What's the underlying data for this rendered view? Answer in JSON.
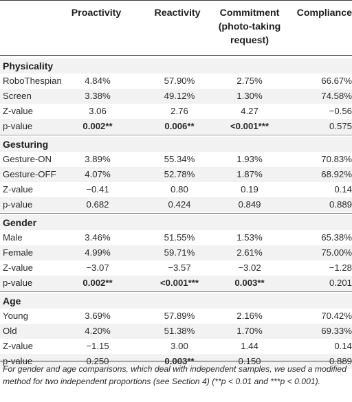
{
  "headers": [
    "",
    "Proactivity",
    "Reactivity",
    "Commitment (photo-taking request)",
    "Compliance"
  ],
  "header_lines": {
    "col1": [
      "Proactivity"
    ],
    "col2": [
      "Reactivity"
    ],
    "col3": [
      "Commitment",
      "(photo-taking",
      "request)"
    ],
    "col4": [
      "Compliance"
    ]
  },
  "sections": [
    {
      "title": "Physicality",
      "rows": [
        {
          "label": "RoboThespian",
          "v": [
            "4.84%",
            "57.90%",
            "2.75%",
            "66.67%"
          ],
          "bold": [
            false,
            false,
            false,
            false
          ]
        },
        {
          "label": "Screen",
          "v": [
            "3.38%",
            "49.12%",
            "1.30%",
            "74.58%"
          ],
          "bold": [
            false,
            false,
            false,
            false
          ]
        },
        {
          "label": "Z-value",
          "v": [
            "3.06",
            "2.76",
            "4.27",
            "−0.56"
          ],
          "bold": [
            false,
            false,
            false,
            false
          ]
        },
        {
          "label": "p-value",
          "v": [
            "0.002**",
            "0.006**",
            "<0.001***",
            "0.575"
          ],
          "bold": [
            true,
            true,
            true,
            false
          ]
        }
      ]
    },
    {
      "title": "Gesturing",
      "rows": [
        {
          "label": "Gesture-ON",
          "v": [
            "3.89%",
            "55.34%",
            "1.93%",
            "70.83%"
          ],
          "bold": [
            false,
            false,
            false,
            false
          ]
        },
        {
          "label": "Gesture-OFF",
          "v": [
            "4.07%",
            "52.78%",
            "1.87%",
            "68.92%"
          ],
          "bold": [
            false,
            false,
            false,
            false
          ]
        },
        {
          "label": "Z-value",
          "v": [
            "−0.41",
            "0.80",
            "0.19",
            "0.14"
          ],
          "bold": [
            false,
            false,
            false,
            false
          ]
        },
        {
          "label": "p-value",
          "v": [
            "0.682",
            "0.424",
            "0.849",
            "0.889"
          ],
          "bold": [
            false,
            false,
            false,
            false
          ]
        }
      ]
    },
    {
      "title": "Gender",
      "rows": [
        {
          "label": "Male",
          "v": [
            "3.46%",
            "51.55%",
            "1.53%",
            "65.38%"
          ],
          "bold": [
            false,
            false,
            false,
            false
          ]
        },
        {
          "label": "Female",
          "v": [
            "4.99%",
            "59.71%",
            "2.61%",
            "75.00%"
          ],
          "bold": [
            false,
            false,
            false,
            false
          ]
        },
        {
          "label": "Z-value",
          "v": [
            "−3.07",
            "−3.57",
            "−3.02",
            "−1.28"
          ],
          "bold": [
            false,
            false,
            false,
            false
          ]
        },
        {
          "label": "p-value",
          "v": [
            "0.002**",
            "<0.001***",
            "0.003**",
            "0.201"
          ],
          "bold": [
            true,
            true,
            true,
            false
          ]
        }
      ]
    },
    {
      "title": "Age",
      "rows": [
        {
          "label": "Young",
          "v": [
            "3.69%",
            "57.89%",
            "2.16%",
            "70.42%"
          ],
          "bold": [
            false,
            false,
            false,
            false
          ]
        },
        {
          "label": "Old",
          "v": [
            "4.20%",
            "51.38%",
            "1.70%",
            "69.33%"
          ],
          "bold": [
            false,
            false,
            false,
            false
          ]
        },
        {
          "label": "Z-value",
          "v": [
            "−1.15",
            "3.00",
            "1.44",
            "0.14"
          ],
          "bold": [
            false,
            false,
            false,
            false
          ]
        },
        {
          "label": "p-value",
          "v": [
            "0.250",
            "0.003**",
            "0.150",
            "0.889"
          ],
          "bold": [
            false,
            true,
            false,
            false
          ]
        }
      ]
    }
  ],
  "footnote": "For gender and age comparisons, which deal with independent samples, we used a modified method for two independent proportions (see Section 4) (**p < 0.01 and ***p < 0.001)."
}
